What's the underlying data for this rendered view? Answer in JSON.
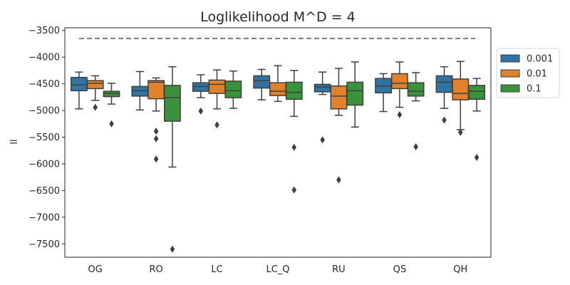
{
  "chart_data": {
    "type": "box",
    "title": "Loglikelihood M^D = 4",
    "xlabel": "",
    "ylabel": "ll",
    "ylim": [
      -7750,
      -3450
    ],
    "yticks": [
      -3500,
      -4000,
      -4500,
      -5000,
      -5500,
      -6000,
      -6500,
      -7000,
      -7500
    ],
    "grid": false,
    "legend_position": "right, outside top",
    "reference_line": -3650,
    "categories": [
      "OG",
      "RO",
      "LC",
      "LC_Q",
      "RU",
      "QS",
      "QH"
    ],
    "series": [
      {
        "name": "0.001",
        "color": "#3274a1",
        "boxes": [
          {
            "whislo": -4970,
            "q1": -4630,
            "med": -4520,
            "q3": -4380,
            "whishi": -4280,
            "fliers": []
          },
          {
            "whislo": -4990,
            "q1": -4730,
            "med": -4630,
            "q3": -4550,
            "whishi": -4270,
            "fliers": []
          },
          {
            "whislo": -4760,
            "q1": -4640,
            "med": -4550,
            "q3": -4480,
            "whishi": -4330,
            "fliers": [
              -5010
            ]
          },
          {
            "whislo": -4800,
            "q1": -4580,
            "med": -4440,
            "q3": -4350,
            "whishi": -4230,
            "fliers": []
          },
          {
            "whislo": -4700,
            "q1": -4650,
            "med": -4560,
            "q3": -4510,
            "whishi": -4280,
            "fliers": [
              -5550
            ]
          },
          {
            "whislo": -5020,
            "q1": -4670,
            "med": -4540,
            "q3": -4400,
            "whishi": -4310,
            "fliers": []
          },
          {
            "whislo": -4960,
            "q1": -4660,
            "med": -4470,
            "q3": -4350,
            "whishi": -4180,
            "fliers": [
              -5180
            ]
          }
        ]
      },
      {
        "name": "0.01",
        "color": "#e1812c",
        "boxes": [
          {
            "whislo": -4810,
            "q1": -4590,
            "med": -4490,
            "q3": -4440,
            "whishi": -4350,
            "fliers": [
              -4940
            ]
          },
          {
            "whislo": -5010,
            "q1": -4780,
            "med": -4470,
            "q3": -4440,
            "whishi": -4390,
            "fliers": [
              -5390,
              -5530,
              -5910
            ]
          },
          {
            "whislo": -4970,
            "q1": -4680,
            "med": -4510,
            "q3": -4430,
            "whishi": -4240,
            "fliers": [
              -5270
            ]
          },
          {
            "whislo": -4830,
            "q1": -4720,
            "med": -4640,
            "q3": -4480,
            "whishi": -4160,
            "fliers": []
          },
          {
            "whislo": -5090,
            "q1": -4970,
            "med": -4730,
            "q3": -4540,
            "whishi": -4210,
            "fliers": [
              -6300
            ]
          },
          {
            "whislo": -4940,
            "q1": -4590,
            "med": -4490,
            "q3": -4310,
            "whishi": -4090,
            "fliers": [
              -5080
            ]
          },
          {
            "whislo": -5360,
            "q1": -4800,
            "med": -4680,
            "q3": -4410,
            "whishi": -4080,
            "fliers": [
              -5410
            ]
          }
        ]
      },
      {
        "name": "0.1",
        "color": "#3a923a",
        "boxes": [
          {
            "whislo": -4880,
            "q1": -4740,
            "med": -4680,
            "q3": -4640,
            "whishi": -4490,
            "fliers": [
              -5250
            ]
          },
          {
            "whislo": -6060,
            "q1": -5200,
            "med": -4760,
            "q3": -4530,
            "whishi": -4180,
            "fliers": [
              -7600
            ]
          },
          {
            "whislo": -4960,
            "q1": -4760,
            "med": -4630,
            "q3": -4450,
            "whishi": -4260,
            "fliers": []
          },
          {
            "whislo": -5110,
            "q1": -4790,
            "med": -4660,
            "q3": -4470,
            "whishi": -4250,
            "fliers": [
              -5690,
              -6490
            ]
          },
          {
            "whislo": -5310,
            "q1": -4900,
            "med": -4630,
            "q3": -4470,
            "whishi": -4090,
            "fliers": []
          },
          {
            "whislo": -4820,
            "q1": -4730,
            "med": -4640,
            "q3": -4480,
            "whishi": -4290,
            "fliers": [
              -5680
            ]
          },
          {
            "whislo": -5010,
            "q1": -4790,
            "med": -4640,
            "q3": -4530,
            "whishi": -4400,
            "fliers": [
              -5880
            ]
          }
        ]
      }
    ]
  }
}
